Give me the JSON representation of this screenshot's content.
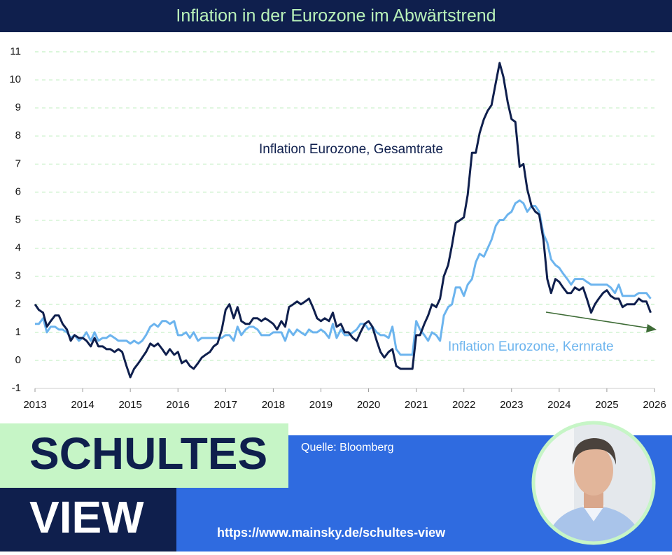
{
  "chart_data": {
    "type": "line",
    "title": "Inflation in der Eurozone im Abwärtstrend",
    "annotations": [
      "Inflation Eurozone, Gesamtrate",
      "Inflation Eurozone, Kernrate"
    ],
    "xlim": [
      2013,
      2026
    ],
    "xticks": [
      2013,
      2014,
      2015,
      2016,
      2017,
      2018,
      2019,
      2020,
      2021,
      2022,
      2023,
      2024,
      2025,
      2026
    ],
    "ylim": [
      -1,
      11
    ],
    "yticks": [
      -1,
      0,
      1,
      2,
      3,
      4,
      5,
      6,
      7,
      8,
      9,
      10,
      11
    ],
    "grid": true,
    "x": [
      2013.0,
      2013.08,
      2013.17,
      2013.25,
      2013.33,
      2013.42,
      2013.5,
      2013.58,
      2013.67,
      2013.75,
      2013.83,
      2013.92,
      2014.0,
      2014.08,
      2014.17,
      2014.25,
      2014.33,
      2014.42,
      2014.5,
      2014.58,
      2014.67,
      2014.75,
      2014.83,
      2014.92,
      2015.0,
      2015.08,
      2015.17,
      2015.25,
      2015.33,
      2015.42,
      2015.5,
      2015.58,
      2015.67,
      2015.75,
      2015.83,
      2015.92,
      2016.0,
      2016.08,
      2016.17,
      2016.25,
      2016.33,
      2016.42,
      2016.5,
      2016.58,
      2016.67,
      2016.75,
      2016.83,
      2016.92,
      2017.0,
      2017.08,
      2017.17,
      2017.25,
      2017.33,
      2017.42,
      2017.5,
      2017.58,
      2017.67,
      2017.75,
      2017.83,
      2017.92,
      2018.0,
      2018.08,
      2018.17,
      2018.25,
      2018.33,
      2018.42,
      2018.5,
      2018.58,
      2018.67,
      2018.75,
      2018.83,
      2018.92,
      2019.0,
      2019.08,
      2019.17,
      2019.25,
      2019.33,
      2019.42,
      2019.5,
      2019.58,
      2019.67,
      2019.75,
      2019.83,
      2019.92,
      2020.0,
      2020.08,
      2020.17,
      2020.25,
      2020.33,
      2020.42,
      2020.5,
      2020.58,
      2020.67,
      2020.75,
      2020.83,
      2020.92,
      2021.0,
      2021.08,
      2021.17,
      2021.25,
      2021.33,
      2021.42,
      2021.5,
      2021.58,
      2021.67,
      2021.75,
      2021.83,
      2021.92,
      2022.0,
      2022.08,
      2022.17,
      2022.25,
      2022.33,
      2022.42,
      2022.5,
      2022.58,
      2022.67,
      2022.75,
      2022.83,
      2022.92,
      2023.0,
      2023.08,
      2023.17,
      2023.25,
      2023.33,
      2023.42,
      2023.5,
      2023.58,
      2023.67,
      2023.75,
      2023.83,
      2023.92,
      2024.0,
      2024.08,
      2024.17,
      2024.25,
      2024.33,
      2024.42,
      2024.5,
      2024.58,
      2024.67,
      2024.75,
      2024.83,
      2024.92,
      2025.0,
      2025.08,
      2025.17,
      2025.25,
      2025.33,
      2025.42,
      2025.5,
      2025.58,
      2025.67,
      2025.75,
      2025.83,
      2025.92
    ],
    "series": [
      {
        "name": "Inflation Eurozone, Gesamtrate",
        "color": "#0f1f4d",
        "values": [
          2.0,
          1.8,
          1.7,
          1.2,
          1.4,
          1.6,
          1.6,
          1.3,
          1.1,
          0.7,
          0.9,
          0.8,
          0.8,
          0.7,
          0.5,
          0.8,
          0.5,
          0.5,
          0.4,
          0.4,
          0.3,
          0.4,
          0.3,
          -0.2,
          -0.6,
          -0.3,
          -0.1,
          0.1,
          0.3,
          0.6,
          0.5,
          0.6,
          0.4,
          0.2,
          0.4,
          0.2,
          0.3,
          -0.1,
          0.0,
          -0.2,
          -0.3,
          -0.1,
          0.1,
          0.2,
          0.3,
          0.5,
          0.6,
          1.1,
          1.8,
          2.0,
          1.5,
          1.9,
          1.4,
          1.3,
          1.3,
          1.5,
          1.5,
          1.4,
          1.5,
          1.4,
          1.3,
          1.1,
          1.4,
          1.2,
          1.9,
          2.0,
          2.1,
          2.0,
          2.1,
          2.2,
          1.9,
          1.5,
          1.4,
          1.5,
          1.4,
          1.7,
          1.2,
          1.3,
          1.0,
          1.0,
          0.8,
          0.7,
          1.0,
          1.3,
          1.4,
          1.2,
          0.7,
          0.3,
          0.1,
          0.3,
          0.4,
          -0.2,
          -0.3,
          -0.3,
          -0.3,
          -0.3,
          0.9,
          0.9,
          1.3,
          1.6,
          2.0,
          1.9,
          2.2,
          3.0,
          3.4,
          4.1,
          4.9,
          5.0,
          5.1,
          5.9,
          7.4,
          7.4,
          8.1,
          8.6,
          8.9,
          9.1,
          9.9,
          10.6,
          10.1,
          9.2,
          8.6,
          8.5,
          6.9,
          7.0,
          6.1,
          5.5,
          5.3,
          5.2,
          4.3,
          2.9,
          2.4,
          2.9,
          2.8,
          2.6,
          2.4,
          2.4,
          2.6,
          2.5,
          2.6,
          2.2,
          1.7,
          2.0,
          2.2,
          2.4,
          2.5,
          2.3,
          2.2,
          2.2,
          1.9,
          2.0,
          2.0,
          2.0,
          2.2,
          2.1,
          2.1,
          1.7
        ]
      },
      {
        "name": "Inflation Eurozone, Kernrate",
        "color": "#6cb4ee",
        "values": [
          1.3,
          1.3,
          1.5,
          1.0,
          1.2,
          1.2,
          1.1,
          1.1,
          1.0,
          0.8,
          0.9,
          0.7,
          0.8,
          1.0,
          0.7,
          1.0,
          0.7,
          0.8,
          0.8,
          0.9,
          0.8,
          0.7,
          0.7,
          0.7,
          0.6,
          0.7,
          0.6,
          0.7,
          0.9,
          1.2,
          1.3,
          1.2,
          1.4,
          1.4,
          1.3,
          1.4,
          0.9,
          0.9,
          1.0,
          0.8,
          1.0,
          0.7,
          0.8,
          0.8,
          0.8,
          0.8,
          0.8,
          0.8,
          0.9,
          0.9,
          0.7,
          1.2,
          0.9,
          1.1,
          1.2,
          1.2,
          1.1,
          0.9,
          0.9,
          0.9,
          1.0,
          1.0,
          1.0,
          0.7,
          1.1,
          0.9,
          1.1,
          1.0,
          0.9,
          1.1,
          1.0,
          1.0,
          1.1,
          1.0,
          0.8,
          1.3,
          0.8,
          1.1,
          0.9,
          0.9,
          1.0,
          1.1,
          1.3,
          1.3,
          1.1,
          1.2,
          1.0,
          0.9,
          0.9,
          0.8,
          1.2,
          0.4,
          0.2,
          0.2,
          0.2,
          0.2,
          1.4,
          1.1,
          0.9,
          0.7,
          1.0,
          0.9,
          0.7,
          1.6,
          1.9,
          2.0,
          2.6,
          2.6,
          2.3,
          2.7,
          2.9,
          3.5,
          3.8,
          3.7,
          4.0,
          4.3,
          4.8,
          5.0,
          5.0,
          5.2,
          5.3,
          5.6,
          5.7,
          5.6,
          5.3,
          5.5,
          5.5,
          5.3,
          4.5,
          4.2,
          3.6,
          3.4,
          3.3,
          3.1,
          2.9,
          2.7,
          2.9,
          2.9,
          2.9,
          2.8,
          2.7,
          2.7,
          2.7,
          2.7,
          2.7,
          2.6,
          2.4,
          2.7,
          2.3,
          2.3,
          2.3,
          2.3,
          2.4,
          2.4,
          2.4,
          2.2
        ]
      }
    ]
  },
  "branding": {
    "line1": "SCHULTES",
    "line2": "VIEW",
    "source": "Quelle: Bloomberg",
    "url": "https://www.mainsky.de/schultes-view"
  }
}
